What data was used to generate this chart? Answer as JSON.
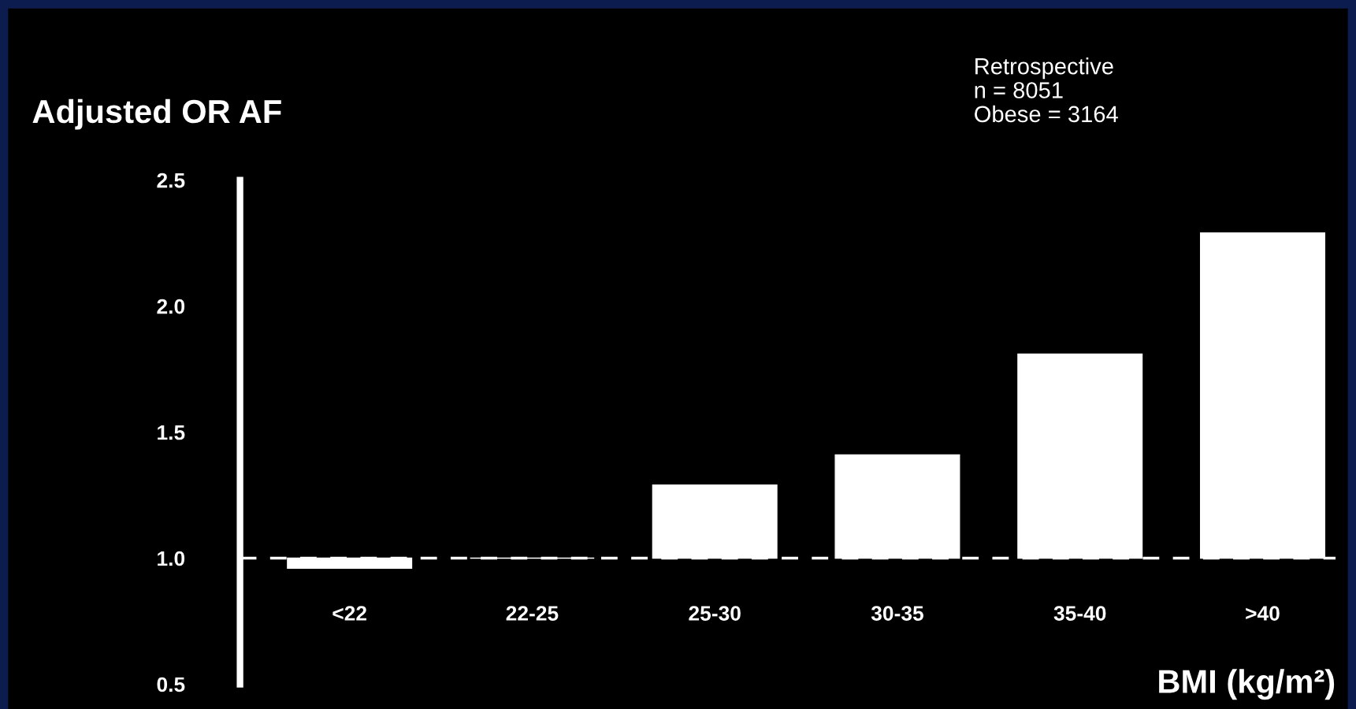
{
  "chart_data": {
    "type": "bar",
    "ylabel": "Adjusted OR AF",
    "xlabel": "BMI (kg/m²)",
    "categories": [
      "<22",
      "22-25",
      "25-30",
      "30-35",
      "35-40",
      ">40"
    ],
    "values": [
      -0.04,
      0,
      0.29,
      0.41,
      0.81,
      1.29
    ],
    "base": [
      1.0,
      1.0,
      1.0,
      1.0,
      1.0,
      1.0
    ],
    "color": "#ffffff",
    "ylim": [
      0.5,
      2.5
    ],
    "yticks": [
      {
        "value": 0.5,
        "label": "0.5"
      },
      {
        "value": 1.0,
        "label": "1.0"
      },
      {
        "value": 1.5,
        "label": "1.5"
      },
      {
        "value": 2.0,
        "label": "2.0"
      },
      {
        "value": 2.5,
        "label": "2.5"
      }
    ],
    "ref_lines": [
      {
        "axis": "y",
        "value": 1.0,
        "color": "#ffffff",
        "line_style": "dashed"
      }
    ],
    "annotations": [
      "Retrospective\nn = 8051\nObese = 3164"
    ],
    "grid": false,
    "legend": false
  }
}
